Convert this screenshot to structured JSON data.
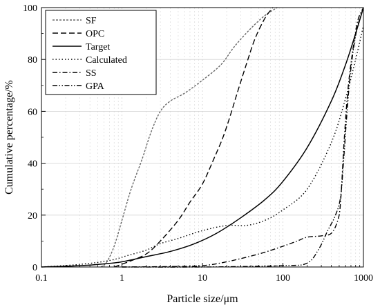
{
  "chart_data": {
    "type": "line",
    "xlabel": "Particle size/μm",
    "ylabel": "Cumulative percentage/%",
    "x_scale": "log",
    "xlim": [
      0.1,
      1000
    ],
    "ylim": [
      0,
      100
    ],
    "x_ticks": [
      0.1,
      1,
      10,
      100,
      1000
    ],
    "x_tick_labels": [
      "0.1",
      "1",
      "10",
      "100",
      "1000"
    ],
    "y_ticks": [
      0,
      20,
      40,
      60,
      80,
      100
    ],
    "y_tick_labels": [
      "0",
      "20",
      "40",
      "60",
      "80",
      "100"
    ],
    "grid": true,
    "legend_position": "top-left",
    "series": [
      {
        "name": "SF",
        "style": "short-dash",
        "color": "#666666",
        "points": [
          [
            0.55,
            0
          ],
          [
            0.65,
            2
          ],
          [
            0.8,
            8
          ],
          [
            1.0,
            18
          ],
          [
            1.3,
            30
          ],
          [
            1.8,
            42
          ],
          [
            2.3,
            52
          ],
          [
            3,
            60
          ],
          [
            4,
            64
          ],
          [
            6,
            67
          ],
          [
            10,
            72
          ],
          [
            17,
            78
          ],
          [
            25,
            85
          ],
          [
            40,
            92
          ],
          [
            60,
            97
          ],
          [
            85,
            100
          ]
        ]
      },
      {
        "name": "OPC",
        "style": "long-dash",
        "color": "#000000",
        "points": [
          [
            0.8,
            0
          ],
          [
            1.2,
            2
          ],
          [
            2,
            5
          ],
          [
            3,
            10
          ],
          [
            5,
            18
          ],
          [
            7,
            25
          ],
          [
            10,
            32
          ],
          [
            14,
            42
          ],
          [
            18,
            50
          ],
          [
            22,
            58
          ],
          [
            27,
            67
          ],
          [
            35,
            78
          ],
          [
            45,
            88
          ],
          [
            60,
            96
          ],
          [
            75,
            100
          ]
        ]
      },
      {
        "name": "Target",
        "style": "solid",
        "color": "#000000",
        "points": [
          [
            0.1,
            0
          ],
          [
            0.3,
            0.5
          ],
          [
            0.6,
            1.2
          ],
          [
            1,
            2
          ],
          [
            2,
            4
          ],
          [
            4,
            6
          ],
          [
            8,
            9
          ],
          [
            15,
            13
          ],
          [
            30,
            19
          ],
          [
            60,
            26
          ],
          [
            100,
            33
          ],
          [
            200,
            46
          ],
          [
            400,
            64
          ],
          [
            600,
            78
          ],
          [
            800,
            90
          ],
          [
            1000,
            100
          ]
        ]
      },
      {
        "name": "Calculated",
        "style": "dotted",
        "color": "#000000",
        "points": [
          [
            0.1,
            0
          ],
          [
            0.3,
            1
          ],
          [
            0.7,
            2.5
          ],
          [
            1.2,
            4.5
          ],
          [
            2,
            6.5
          ],
          [
            3,
            9
          ],
          [
            5,
            11
          ],
          [
            10,
            14
          ],
          [
            20,
            16
          ],
          [
            35,
            16
          ],
          [
            60,
            18
          ],
          [
            100,
            22
          ],
          [
            200,
            30
          ],
          [
            400,
            48
          ],
          [
            600,
            65
          ],
          [
            800,
            80
          ],
          [
            1000,
            93
          ]
        ]
      },
      {
        "name": "SS",
        "style": "dash-dot",
        "color": "#000000",
        "points": [
          [
            1,
            0
          ],
          [
            5,
            0.2
          ],
          [
            10,
            0.5
          ],
          [
            20,
            2
          ],
          [
            50,
            5
          ],
          [
            100,
            8
          ],
          [
            150,
            10
          ],
          [
            200,
            11.5
          ],
          [
            300,
            12
          ],
          [
            400,
            13
          ],
          [
            480,
            18
          ],
          [
            520,
            25
          ],
          [
            580,
            50
          ],
          [
            650,
            70
          ],
          [
            750,
            85
          ],
          [
            850,
            95
          ],
          [
            1000,
            100
          ]
        ]
      },
      {
        "name": "GPA",
        "style": "dash-dot-dot",
        "color": "#000000",
        "points": [
          [
            1,
            0
          ],
          [
            10,
            0
          ],
          [
            100,
            0.5
          ],
          [
            200,
            1.5
          ],
          [
            280,
            7
          ],
          [
            360,
            14
          ],
          [
            450,
            20
          ],
          [
            520,
            27
          ],
          [
            570,
            42
          ],
          [
            620,
            58
          ],
          [
            680,
            73
          ],
          [
            760,
            85
          ],
          [
            850,
            93
          ],
          [
            1000,
            100
          ]
        ]
      }
    ]
  }
}
